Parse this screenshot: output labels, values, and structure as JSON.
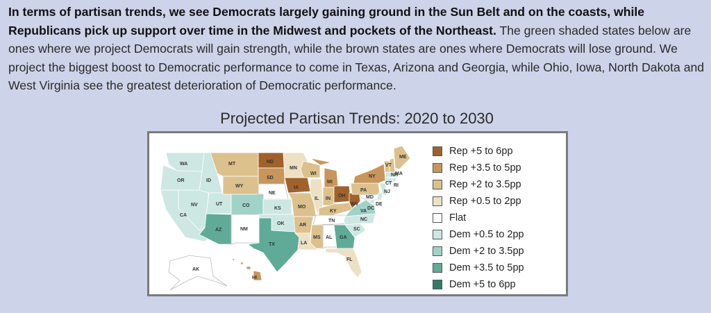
{
  "paragraph": {
    "bold": "In terms of partisan trends, we see Democrats largely gaining ground in the Sun Belt and on the coasts, while Republicans pick up support over time in the Midwest and pockets of the Northeast.",
    "rest": " The green shaded states below are ones where we project Democrats will gain strength, while the brown states are ones where Democrats will lose ground. We project the biggest boost to Democratic performance to come in Texas, Arizona and Georgia, while Ohio, Iowa, North Dakota and West Virginia see the greatest deterioration of Democratic performance."
  },
  "map_title": "Projected Partisan Trends: 2020 to 2030",
  "legend": [
    {
      "label": "Rep +5 to 6pp",
      "color": "#a0622a"
    },
    {
      "label": "Rep +3.5 to 5pp",
      "color": "#c8965a"
    },
    {
      "label": "Rep +2 to 3.5pp",
      "color": "#dcc18d"
    },
    {
      "label": "Rep +0.5 to 2pp",
      "color": "#ede0c4"
    },
    {
      "label": "Flat",
      "color": "#ffffff"
    },
    {
      "label": "Dem +0.5 to 2pp",
      "color": "#cde7e2"
    },
    {
      "label": "Dem +2 to 3.5pp",
      "color": "#9fd3c7"
    },
    {
      "label": "Dem +3.5 to 5pp",
      "color": "#5fab98"
    },
    {
      "label": "Dem +5 to 6pp",
      "color": "#2f7b68"
    }
  ],
  "states": [
    {
      "abbr": "WA",
      "cat": 5
    },
    {
      "abbr": "OR",
      "cat": 5
    },
    {
      "abbr": "CA",
      "cat": 5
    },
    {
      "abbr": "NV",
      "cat": 5
    },
    {
      "abbr": "ID",
      "cat": 5
    },
    {
      "abbr": "MT",
      "cat": 2
    },
    {
      "abbr": "WY",
      "cat": 2
    },
    {
      "abbr": "UT",
      "cat": 5
    },
    {
      "abbr": "CO",
      "cat": 6
    },
    {
      "abbr": "AZ",
      "cat": 7
    },
    {
      "abbr": "NM",
      "cat": 4
    },
    {
      "abbr": "ND",
      "cat": 0
    },
    {
      "abbr": "SD",
      "cat": 1
    },
    {
      "abbr": "NE",
      "cat": 4
    },
    {
      "abbr": "KS",
      "cat": 5
    },
    {
      "abbr": "OK",
      "cat": 5
    },
    {
      "abbr": "TX",
      "cat": 7
    },
    {
      "abbr": "MN",
      "cat": 3
    },
    {
      "abbr": "IA",
      "cat": 0
    },
    {
      "abbr": "MO",
      "cat": 2
    },
    {
      "abbr": "AR",
      "cat": 2
    },
    {
      "abbr": "LA",
      "cat": 3
    },
    {
      "abbr": "WI",
      "cat": 2
    },
    {
      "abbr": "IL",
      "cat": 3
    },
    {
      "abbr": "MI",
      "cat": 1
    },
    {
      "abbr": "IN",
      "cat": 2
    },
    {
      "abbr": "OH",
      "cat": 0
    },
    {
      "abbr": "KY",
      "cat": 2
    },
    {
      "abbr": "TN",
      "cat": 4
    },
    {
      "abbr": "MS",
      "cat": 2
    },
    {
      "abbr": "AL",
      "cat": 4
    },
    {
      "abbr": "GA",
      "cat": 7
    },
    {
      "abbr": "FL",
      "cat": 3
    },
    {
      "abbr": "SC",
      "cat": 5
    },
    {
      "abbr": "NC",
      "cat": 5
    },
    {
      "abbr": "VA",
      "cat": 6
    },
    {
      "abbr": "WV",
      "cat": 0
    },
    {
      "abbr": "PA",
      "cat": 2
    },
    {
      "abbr": "NY",
      "cat": 1
    },
    {
      "abbr": "MD",
      "cat": 4
    },
    {
      "abbr": "DE",
      "cat": 5
    },
    {
      "abbr": "DC",
      "cat": 5
    },
    {
      "abbr": "NJ",
      "cat": 5
    },
    {
      "abbr": "CT",
      "cat": 5
    },
    {
      "abbr": "RI",
      "cat": 5
    },
    {
      "abbr": "MA",
      "cat": 5
    },
    {
      "abbr": "VT",
      "cat": 2
    },
    {
      "abbr": "NH",
      "cat": 2
    },
    {
      "abbr": "ME",
      "cat": 2
    },
    {
      "abbr": "AK",
      "cat": 4
    },
    {
      "abbr": "HI",
      "cat": 1
    }
  ]
}
